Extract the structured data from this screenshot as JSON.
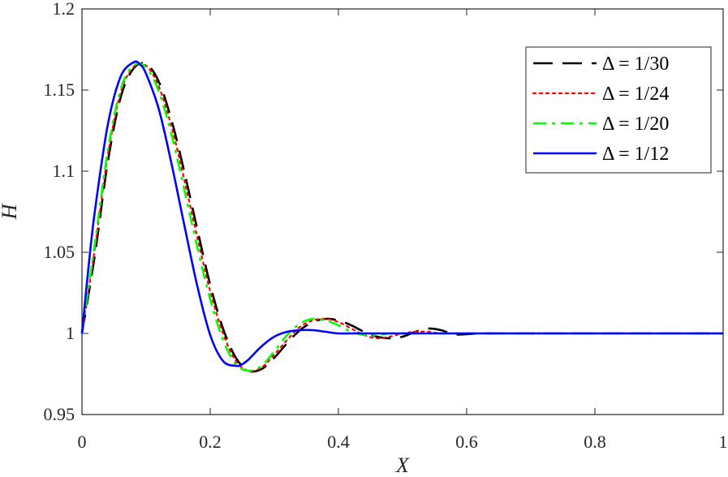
{
  "chart_data": {
    "type": "line",
    "title": "",
    "xlabel": "X",
    "ylabel": "H",
    "xlim": [
      0,
      1
    ],
    "ylim": [
      0.95,
      1.2
    ],
    "xticks": [
      0,
      0.2,
      0.4,
      0.6,
      0.8,
      1
    ],
    "xtick_labels": [
      "0",
      "0.2",
      "0.4",
      "0.6",
      "0.8",
      "1"
    ],
    "yticks": [
      0.95,
      1,
      1.05,
      1.1,
      1.15,
      1.2
    ],
    "ytick_labels": [
      "0.95",
      "1",
      "1.05",
      "1.1",
      "1.15",
      "1.2"
    ],
    "grid": false,
    "legend_position": "top-right",
    "series": [
      {
        "name": "Δ = 1/30",
        "color": "#000000",
        "style": "dashed",
        "x": [
          0,
          0.02,
          0.04,
          0.06,
          0.08,
          0.1,
          0.12,
          0.14,
          0.16,
          0.18,
          0.2,
          0.22,
          0.24,
          0.26,
          0.28,
          0.3,
          0.32,
          0.34,
          0.36,
          0.38,
          0.4,
          0.42,
          0.44,
          0.46,
          0.48,
          0.5,
          0.52,
          0.54,
          0.56,
          0.58,
          0.6,
          0.62,
          0.65,
          0.7,
          0.8,
          0.9,
          1.0
        ],
        "y": [
          1.0,
          1.048,
          1.105,
          1.145,
          1.163,
          1.166,
          1.155,
          1.131,
          1.099,
          1.064,
          1.03,
          1.003,
          0.985,
          0.977,
          0.978,
          0.985,
          0.994,
          1.002,
          1.007,
          1.009,
          1.008,
          1.005,
          1.001,
          0.998,
          0.997,
          0.998,
          1.001,
          1.003,
          1.002,
          0.9995,
          0.9995,
          1.0,
          1.0,
          1.0,
          1.0,
          1.0,
          1.0
        ]
      },
      {
        "name": "Δ = 1/24",
        "color": "#ff0000",
        "style": "dotted",
        "x": [
          0,
          0.02,
          0.04,
          0.06,
          0.08,
          0.1,
          0.12,
          0.14,
          0.16,
          0.18,
          0.2,
          0.22,
          0.24,
          0.26,
          0.28,
          0.3,
          0.32,
          0.34,
          0.36,
          0.38,
          0.4,
          0.42,
          0.44,
          0.46,
          0.48,
          0.5,
          0.52,
          0.54,
          0.56,
          0.58,
          0.6,
          0.62,
          0.65,
          0.7,
          0.8,
          0.9,
          1.0
        ],
        "y": [
          1.0,
          1.052,
          1.109,
          1.148,
          1.164,
          1.165,
          1.152,
          1.127,
          1.094,
          1.059,
          1.026,
          1.0,
          0.983,
          0.977,
          0.979,
          0.987,
          0.996,
          1.004,
          1.008,
          1.009,
          1.007,
          1.003,
          0.999,
          0.997,
          0.998,
          1.0,
          1.001,
          1.001,
          1.0,
          1.0,
          1.0,
          1.0,
          1.0,
          1.0,
          1.0,
          1.0,
          1.0
        ]
      },
      {
        "name": "Δ = 1/20",
        "color": "#00ff00",
        "style": "dashdot",
        "x": [
          0,
          0.02,
          0.04,
          0.06,
          0.08,
          0.1,
          0.12,
          0.14,
          0.16,
          0.18,
          0.2,
          0.22,
          0.24,
          0.26,
          0.28,
          0.3,
          0.32,
          0.34,
          0.36,
          0.38,
          0.4,
          0.42,
          0.44,
          0.46,
          0.48,
          0.5,
          0.52,
          0.54,
          0.56,
          0.58,
          0.6,
          0.62,
          0.65,
          0.7,
          0.8,
          0.9,
          1.0
        ],
        "y": [
          1.0,
          1.055,
          1.112,
          1.15,
          1.165,
          1.164,
          1.149,
          1.122,
          1.088,
          1.053,
          1.021,
          0.996,
          0.981,
          0.977,
          0.98,
          0.989,
          0.999,
          1.006,
          1.009,
          1.008,
          1.005,
          1.001,
          0.999,
          0.999,
          1.0,
          1.0,
          1.0,
          1.0,
          1.0,
          1.0,
          1.0,
          1.0,
          1.0,
          1.0,
          1.0,
          1.0,
          1.0
        ]
      },
      {
        "name": "Δ = 1/12",
        "color": "#0000ff",
        "style": "solid",
        "x": [
          0,
          0.01,
          0.02,
          0.04,
          0.06,
          0.08,
          0.09,
          0.1,
          0.12,
          0.14,
          0.16,
          0.18,
          0.2,
          0.22,
          0.24,
          0.25,
          0.26,
          0.28,
          0.3,
          0.32,
          0.34,
          0.36,
          0.38,
          0.4,
          0.42,
          0.44,
          0.46,
          0.48,
          0.5,
          0.55,
          0.6,
          0.7,
          0.8,
          0.9,
          1.0
        ],
        "y": [
          1.0,
          1.04,
          1.075,
          1.128,
          1.158,
          1.167,
          1.166,
          1.16,
          1.138,
          1.104,
          1.066,
          1.029,
          0.999,
          0.983,
          0.98,
          0.981,
          0.984,
          0.992,
          0.998,
          1.001,
          1.002,
          1.002,
          1.001,
          1.0,
          1.0,
          1.0,
          1.0,
          1.0,
          1.0,
          1.0,
          1.0,
          1.0,
          1.0,
          1.0,
          1.0
        ]
      }
    ]
  }
}
